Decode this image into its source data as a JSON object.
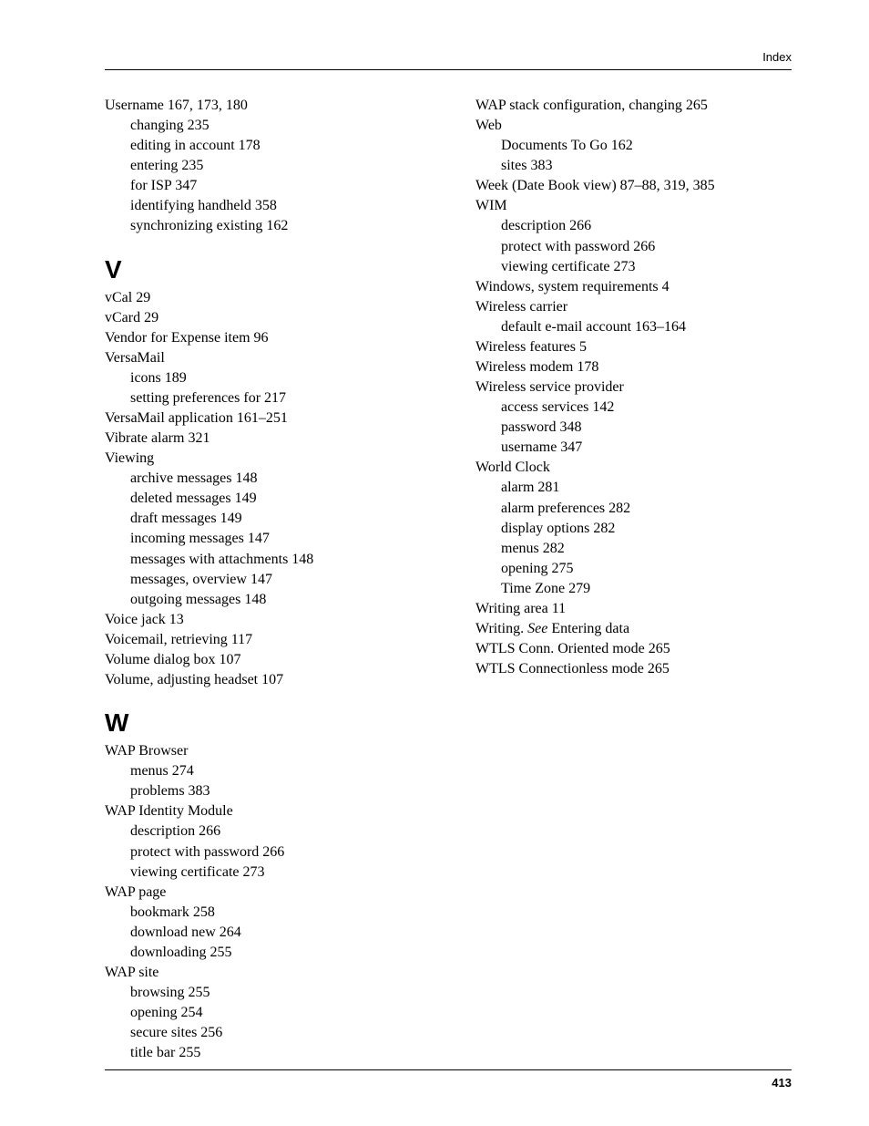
{
  "header": {
    "label": "Index"
  },
  "footer": {
    "page": "413"
  },
  "left": {
    "pre_entries": [
      {
        "t": "Username  167, 173, 180",
        "s": false
      },
      {
        "t": "changing  235",
        "s": true
      },
      {
        "t": "editing in account  178",
        "s": true
      },
      {
        "t": "entering  235",
        "s": true
      },
      {
        "t": "for ISP  347",
        "s": true
      },
      {
        "t": "identifying handheld  358",
        "s": true
      },
      {
        "t": "synchronizing existing  162",
        "s": true
      }
    ],
    "sections": [
      {
        "letter": "V",
        "entries": [
          {
            "t": "vCal  29",
            "s": false
          },
          {
            "t": "vCard  29",
            "s": false
          },
          {
            "t": "Vendor for Expense item  96",
            "s": false
          },
          {
            "t": "VersaMail",
            "s": false
          },
          {
            "t": "icons  189",
            "s": true
          },
          {
            "t": "setting preferences for  217",
            "s": true
          },
          {
            "t": "VersaMail application  161–251",
            "s": false
          },
          {
            "t": "Vibrate alarm  321",
            "s": false
          },
          {
            "t": "Viewing",
            "s": false
          },
          {
            "t": "archive messages  148",
            "s": true
          },
          {
            "t": "deleted messages  149",
            "s": true
          },
          {
            "t": "draft messages  149",
            "s": true
          },
          {
            "t": "incoming messages  147",
            "s": true
          },
          {
            "t": "messages with attachments  148",
            "s": true
          },
          {
            "t": "messages, overview  147",
            "s": true
          },
          {
            "t": "outgoing messages  148",
            "s": true
          },
          {
            "t": "Voice jack  13",
            "s": false
          },
          {
            "t": "Voicemail, retrieving  117",
            "s": false
          },
          {
            "t": "Volume dialog box  107",
            "s": false
          },
          {
            "t": "Volume, adjusting headset  107",
            "s": false
          }
        ]
      },
      {
        "letter": "W",
        "entries": [
          {
            "t": "WAP Browser",
            "s": false
          },
          {
            "t": "menus  274",
            "s": true
          },
          {
            "t": "problems  383",
            "s": true
          },
          {
            "t": "WAP Identity Module",
            "s": false
          },
          {
            "t": "description  266",
            "s": true
          },
          {
            "t": "protect with password  266",
            "s": true
          },
          {
            "t": "viewing certificate  273",
            "s": true
          },
          {
            "t": "WAP page",
            "s": false
          },
          {
            "t": "bookmark  258",
            "s": true
          },
          {
            "t": "download new  264",
            "s": true
          },
          {
            "t": "downloading  255",
            "s": true
          },
          {
            "t": "WAP site",
            "s": false
          },
          {
            "t": "browsing  255",
            "s": true
          },
          {
            "t": "opening  254",
            "s": true
          },
          {
            "t": "secure sites  256",
            "s": true
          },
          {
            "t": "title bar  255",
            "s": true
          }
        ]
      }
    ]
  },
  "right": {
    "entries": [
      {
        "t": "WAP stack configuration, changing  265",
        "s": false
      },
      {
        "t": "Web",
        "s": false
      },
      {
        "t": "Documents To Go  162",
        "s": true
      },
      {
        "t": "sites  383",
        "s": true
      },
      {
        "t": "Week (Date Book view)  87–88, 319, 385",
        "s": false
      },
      {
        "t": "WIM",
        "s": false
      },
      {
        "t": "description  266",
        "s": true
      },
      {
        "t": "protect with password  266",
        "s": true
      },
      {
        "t": "viewing certificate  273",
        "s": true
      },
      {
        "t": "Windows, system requirements  4",
        "s": false
      },
      {
        "t": "Wireless carrier",
        "s": false
      },
      {
        "t": "default e-mail account  163–164",
        "s": true
      },
      {
        "t": "Wireless features  5",
        "s": false
      },
      {
        "t": "Wireless modem  178",
        "s": false
      },
      {
        "t": "Wireless service provider",
        "s": false
      },
      {
        "t": "access services  142",
        "s": true
      },
      {
        "t": "password  348",
        "s": true
      },
      {
        "t": "username  347",
        "s": true
      },
      {
        "t": "World Clock",
        "s": false
      },
      {
        "t": "alarm  281",
        "s": true
      },
      {
        "t": "alarm preferences  282",
        "s": true
      },
      {
        "t": "display options  282",
        "s": true
      },
      {
        "t": "menus  282",
        "s": true
      },
      {
        "t": "opening  275",
        "s": true
      },
      {
        "t": "Time Zone  279",
        "s": true
      },
      {
        "t": "Writing area  11",
        "s": false
      },
      {
        "parts": [
          {
            "text": "Writing. ",
            "i": false
          },
          {
            "text": "See",
            "i": true
          },
          {
            "text": " Entering data",
            "i": false
          }
        ],
        "s": false
      },
      {
        "t": "WTLS Conn. Oriented mode  265",
        "s": false
      },
      {
        "t": "WTLS Connectionless mode  265",
        "s": false
      }
    ]
  }
}
